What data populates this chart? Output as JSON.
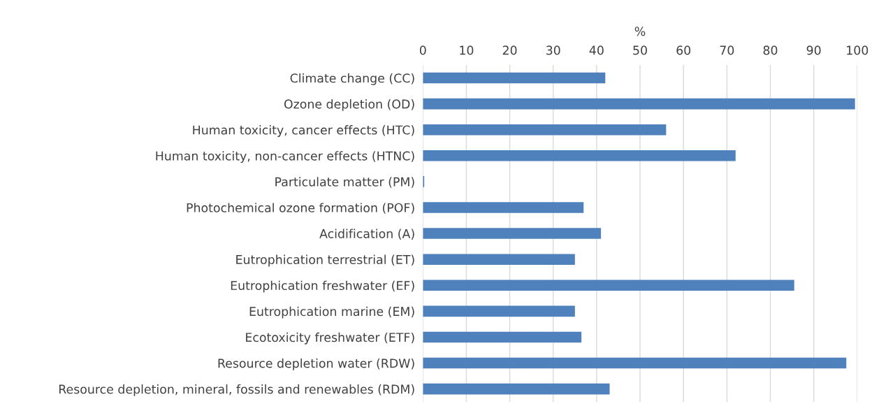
{
  "chart_data": {
    "type": "bar",
    "orientation": "horizontal",
    "xlabel": "%",
    "categories": [
      "Climate change (CC)",
      "Ozone depletion (OD)",
      "Human toxicity, cancer effects (HTC)",
      "Human toxicity, non-cancer effects (HTNC)",
      "Particulate matter (PM)",
      "Photochemical ozone formation (POF)",
      "Acidification (A)",
      "Eutrophication terrestrial (ET)",
      "Eutrophication freshwater (EF)",
      "Eutrophication marine (EM)",
      "Ecotoxicity freshwater (ETF)",
      "Resource depletion water (RDW)",
      "Resource depletion, mineral, fossils and renewables (RDM)"
    ],
    "values": [
      42,
      99.5,
      56,
      72,
      0.3,
      37,
      41,
      35,
      85.5,
      35,
      36.5,
      97.5,
      43
    ],
    "color": "#4f81bd",
    "xlim": [
      0,
      100
    ],
    "xticks": [
      0,
      10,
      20,
      30,
      40,
      50,
      60,
      70,
      80,
      90,
      100
    ],
    "grid": "x",
    "legend": false
  }
}
